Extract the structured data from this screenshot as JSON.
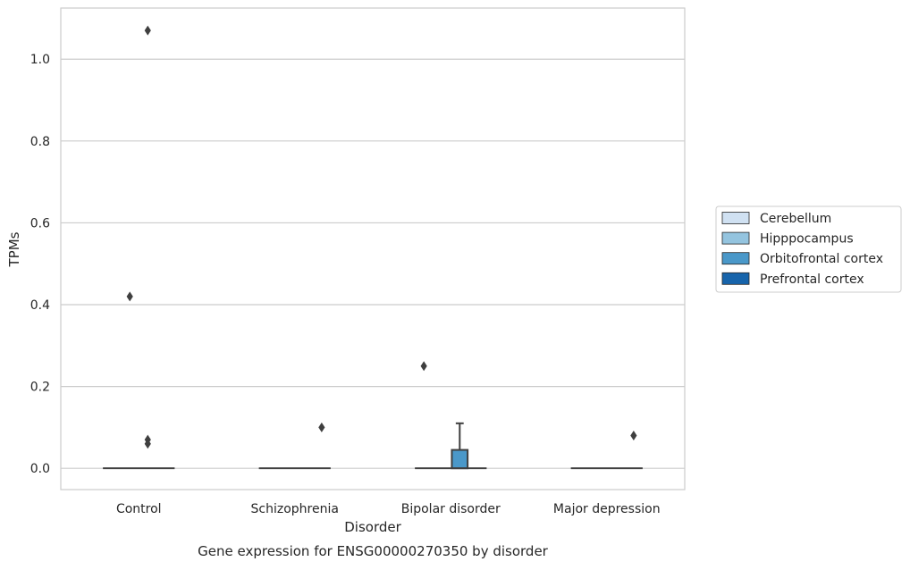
{
  "chart_data": {
    "type": "box",
    "title": "",
    "caption": "Gene expression for ENSG00000270350 by disorder",
    "xlabel": "Disorder",
    "ylabel": "TPMs",
    "ylim": [
      -0.052,
      1.125
    ],
    "yticks": [
      0.0,
      0.2,
      0.4,
      0.6,
      0.8,
      1.0
    ],
    "ytick_labels": [
      "0.0",
      "0.2",
      "0.4",
      "0.6",
      "0.8",
      "1.0"
    ],
    "grid": "horizontal",
    "legend_position": "right",
    "categories": [
      "Control",
      "Schizophrenia",
      "Bipolar disorder",
      "Major depression"
    ],
    "series": [
      {
        "name": "Cerebellum",
        "color": "#d0e1f2"
      },
      {
        "name": "Hipppocampus",
        "color": "#94c4df"
      },
      {
        "name": "Orbitofrontal cortex",
        "color": "#4a98c9"
      },
      {
        "name": "Prefrontal cortex",
        "color": "#1764ab"
      }
    ],
    "boxes": [
      {
        "category": "Control",
        "series": "Prefrontal cortex",
        "q1": 0.0,
        "median": 0.0,
        "q3": 0.0,
        "whisker_low": 0.0,
        "whisker_high": 0.0
      },
      {
        "category": "Schizophrenia",
        "series": "Prefrontal cortex",
        "q1": 0.0,
        "median": 0.0,
        "q3": 0.0,
        "whisker_low": 0.0,
        "whisker_high": 0.0
      },
      {
        "category": "Bipolar disorder",
        "series": "Orbitofrontal cortex",
        "q1": 0.0,
        "median": 0.0,
        "q3": 0.045,
        "whisker_low": 0.0,
        "whisker_high": 0.11
      },
      {
        "category": "Major depression",
        "series": "Prefrontal cortex",
        "q1": 0.0,
        "median": 0.0,
        "q3": 0.0,
        "whisker_low": 0.0,
        "whisker_high": 0.0
      }
    ],
    "outliers": [
      {
        "category": "Control",
        "series": "Orbitofrontal cortex",
        "y": 1.07
      },
      {
        "category": "Control",
        "series": "Hipppocampus",
        "y": 0.42
      },
      {
        "category": "Control",
        "series": "Orbitofrontal cortex",
        "y": 0.07
      },
      {
        "category": "Control",
        "series": "Orbitofrontal cortex",
        "y": 0.06
      },
      {
        "category": "Schizophrenia",
        "series": "Prefrontal cortex",
        "y": 0.1
      },
      {
        "category": "Bipolar disorder",
        "series": "Cerebellum",
        "y": 0.25
      },
      {
        "category": "Major depression",
        "series": "Prefrontal cortex",
        "y": 0.08
      }
    ]
  }
}
